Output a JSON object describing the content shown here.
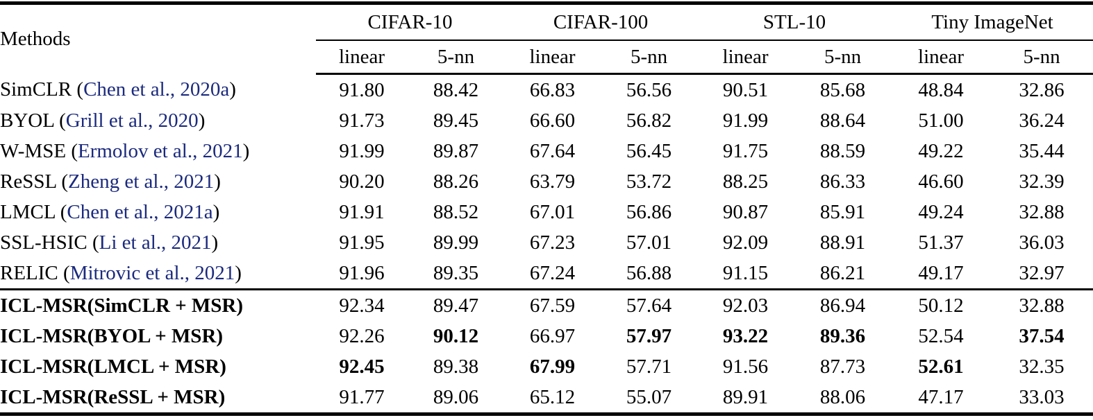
{
  "colors": {
    "citation_blue": "#1b2a7d",
    "text": "#000000",
    "background": "#ffffff",
    "rule": "#000000"
  },
  "punctuation": {
    "open": " (",
    "close": ")"
  },
  "table": {
    "methods_header": "Methods",
    "groups": [
      {
        "label": "CIFAR-10"
      },
      {
        "label": "CIFAR-100"
      },
      {
        "label": "STL-10"
      },
      {
        "label": "Tiny ImageNet"
      }
    ],
    "subheaders": [
      "linear",
      "5-nn"
    ],
    "baseline_rows": [
      {
        "method": "SimCLR",
        "citation": "Chen et al., 2020a",
        "values": [
          "91.80",
          "88.42",
          "66.83",
          "56.56",
          "90.51",
          "85.68",
          "48.84",
          "32.86"
        ]
      },
      {
        "method": "BYOL",
        "citation": "Grill et al., 2020",
        "values": [
          "91.73",
          "89.45",
          "66.60",
          "56.82",
          "91.99",
          "88.64",
          "51.00",
          "36.24"
        ]
      },
      {
        "method": "W-MSE",
        "citation": "Ermolov et al., 2021",
        "values": [
          "91.99",
          "89.87",
          "67.64",
          "56.45",
          "91.75",
          "88.59",
          "49.22",
          "35.44"
        ]
      },
      {
        "method": "ReSSL",
        "citation": "Zheng et al., 2021",
        "values": [
          "90.20",
          "88.26",
          "63.79",
          "53.72",
          "88.25",
          "86.33",
          "46.60",
          "32.39"
        ]
      },
      {
        "method": "LMCL",
        "citation": "Chen et al., 2021a",
        "values": [
          "91.91",
          "88.52",
          "67.01",
          "56.86",
          "90.87",
          "85.91",
          "49.24",
          "32.88"
        ]
      },
      {
        "method": "SSL-HSIC",
        "citation": "Li et al., 2021",
        "values": [
          "91.95",
          "89.99",
          "67.23",
          "57.01",
          "92.09",
          "88.91",
          "51.37",
          "36.03"
        ]
      },
      {
        "method": "RELIC",
        "citation": "Mitrovic et al., 2021",
        "values": [
          "91.96",
          "89.35",
          "67.24",
          "56.88",
          "91.15",
          "86.21",
          "49.17",
          "32.97"
        ]
      }
    ],
    "ours_rows": [
      {
        "method": "ICL-MSR(SimCLR + MSR)",
        "values": [
          "92.34",
          "89.47",
          "67.59",
          "57.64",
          "92.03",
          "86.94",
          "50.12",
          "32.88"
        ],
        "bold": [
          false,
          false,
          false,
          false,
          false,
          false,
          false,
          false
        ]
      },
      {
        "method": "ICL-MSR(BYOL + MSR)",
        "values": [
          "92.26",
          "90.12",
          "66.97",
          "57.97",
          "93.22",
          "89.36",
          "52.54",
          "37.54"
        ],
        "bold": [
          false,
          true,
          false,
          true,
          true,
          true,
          false,
          true
        ]
      },
      {
        "method": "ICL-MSR(LMCL + MSR)",
        "values": [
          "92.45",
          "89.38",
          "67.99",
          "57.71",
          "91.56",
          "87.73",
          "52.61",
          "32.35"
        ],
        "bold": [
          true,
          false,
          true,
          false,
          false,
          false,
          true,
          false
        ]
      },
      {
        "method": "ICL-MSR(ReSSL + MSR)",
        "values": [
          "91.77",
          "89.06",
          "65.12",
          "55.07",
          "89.91",
          "88.06",
          "47.17",
          "33.03"
        ],
        "bold": [
          false,
          false,
          false,
          false,
          false,
          false,
          false,
          false
        ]
      }
    ]
  }
}
